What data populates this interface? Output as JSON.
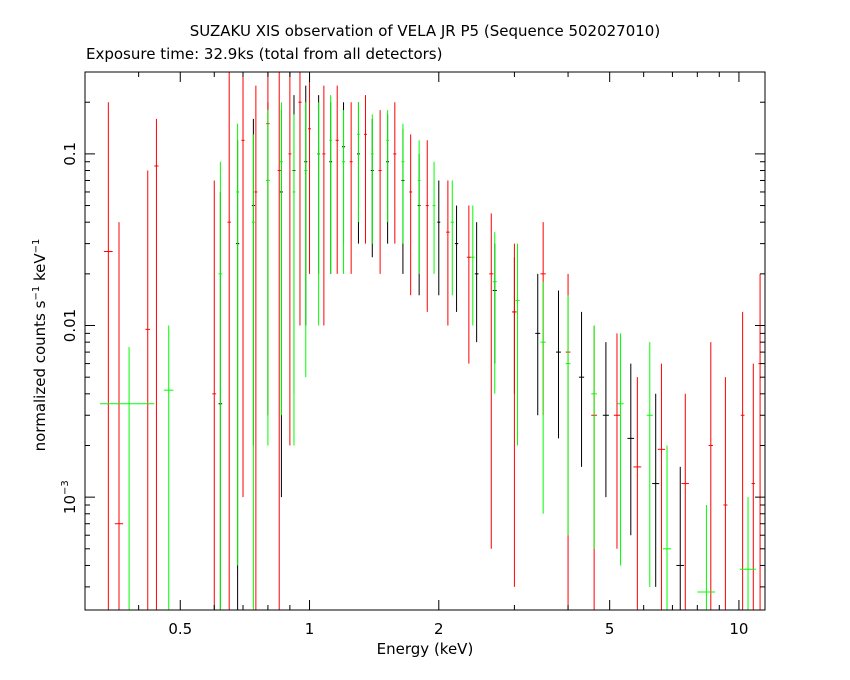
{
  "title": "SUZAKU XIS observation of VELA JR P5 (Sequence 502027010)",
  "subtitle": "Exposure time: 32.9ks (total from all detectors)",
  "xlabel": "Energy (keV)",
  "ylabel_parts": {
    "pre": "normalized counts s",
    "exp1": "−1",
    "mid": " keV",
    "exp2": "−1"
  },
  "chart_data": {
    "type": "scatter",
    "xscale": "log",
    "yscale": "log",
    "xlim": [
      0.3,
      11.5
    ],
    "ylim": [
      0.00022,
      0.3
    ],
    "xticks": [
      {
        "value": 0.5,
        "label": "0.5"
      },
      {
        "value": 1,
        "label": "1"
      },
      {
        "value": 2,
        "label": "2"
      },
      {
        "value": 5,
        "label": "5"
      },
      {
        "value": 10,
        "label": "10"
      }
    ],
    "yticks": [
      {
        "value": 0.001,
        "label": "10",
        "sup": "−3"
      },
      {
        "value": 0.01,
        "label": "0.01",
        "sup": ""
      },
      {
        "value": 0.1,
        "label": "0.1",
        "sup": ""
      }
    ],
    "series": [
      {
        "color": "#000000",
        "points": [
          {
            "x": 0.62,
            "y": 0.0035,
            "xerr": 0.006,
            "lo": 0.00022,
            "hi": 0.06
          },
          {
            "x": 0.68,
            "y": 0.03,
            "xerr": 0.006,
            "lo": 0.00022,
            "hi": 0.12
          },
          {
            "x": 0.74,
            "y": 0.05,
            "xerr": 0.006,
            "lo": 0.002,
            "hi": 0.16
          },
          {
            "x": 0.8,
            "y": 0.07,
            "xerr": 0.007,
            "lo": 0.003,
            "hi": 0.2
          },
          {
            "x": 0.86,
            "y": 0.06,
            "xerr": 0.007,
            "lo": 0.001,
            "hi": 0.18
          },
          {
            "x": 0.92,
            "y": 0.08,
            "xerr": 0.007,
            "lo": 0.004,
            "hi": 0.22
          },
          {
            "x": 0.98,
            "y": 0.09,
            "xerr": 0.008,
            "lo": 0.01,
            "hi": 0.25
          },
          {
            "x": 1.05,
            "y": 0.1,
            "xerr": 0.008,
            "lo": 0.02,
            "hi": 0.22
          },
          {
            "x": 1.12,
            "y": 0.09,
            "xerr": 0.009,
            "lo": 0.02,
            "hi": 0.2
          },
          {
            "x": 1.2,
            "y": 0.11,
            "xerr": 0.01,
            "lo": 0.03,
            "hi": 0.2
          },
          {
            "x": 1.3,
            "y": 0.1,
            "xerr": 0.01,
            "lo": 0.03,
            "hi": 0.2
          },
          {
            "x": 1.4,
            "y": 0.08,
            "xerr": 0.011,
            "lo": 0.025,
            "hi": 0.16
          },
          {
            "x": 1.52,
            "y": 0.09,
            "xerr": 0.012,
            "lo": 0.03,
            "hi": 0.17
          },
          {
            "x": 1.65,
            "y": 0.07,
            "xerr": 0.013,
            "lo": 0.02,
            "hi": 0.14
          },
          {
            "x": 1.8,
            "y": 0.05,
            "xerr": 0.014,
            "lo": 0.015,
            "hi": 0.1
          },
          {
            "x": 2.0,
            "y": 0.04,
            "xerr": 0.016,
            "lo": 0.015,
            "hi": 0.07
          },
          {
            "x": 2.2,
            "y": 0.03,
            "xerr": 0.02,
            "lo": 0.012,
            "hi": 0.05
          },
          {
            "x": 2.45,
            "y": 0.02,
            "xerr": 0.025,
            "lo": 0.008,
            "hi": 0.04
          },
          {
            "x": 2.7,
            "y": 0.016,
            "xerr": 0.03,
            "lo": 0.006,
            "hi": 0.03
          },
          {
            "x": 3.0,
            "y": 0.012,
            "xerr": 0.035,
            "lo": 0.004,
            "hi": 0.025
          },
          {
            "x": 3.4,
            "y": 0.009,
            "xerr": 0.045,
            "lo": 0.003,
            "hi": 0.02
          },
          {
            "x": 3.8,
            "y": 0.007,
            "xerr": 0.05,
            "lo": 0.0022,
            "hi": 0.016
          },
          {
            "x": 4.3,
            "y": 0.005,
            "xerr": 0.06,
            "lo": 0.0015,
            "hi": 0.012
          },
          {
            "x": 4.9,
            "y": 0.003,
            "xerr": 0.08,
            "lo": 0.001,
            "hi": 0.008
          },
          {
            "x": 5.6,
            "y": 0.0022,
            "xerr": 0.1,
            "lo": 0.0006,
            "hi": 0.006
          },
          {
            "x": 6.4,
            "y": 0.0012,
            "xerr": 0.12,
            "lo": 0.0003,
            "hi": 0.004
          },
          {
            "x": 7.3,
            "y": 0.0004,
            "xerr": 0.15,
            "lo": 0.00022,
            "hi": 0.0015
          }
        ]
      },
      {
        "color": "#ff0000",
        "points": [
          {
            "x": 0.34,
            "y": 0.027,
            "xerr": 0.008,
            "lo": 0.00022,
            "hi": 0.2
          },
          {
            "x": 0.36,
            "y": 0.0007,
            "xerr": 0.008,
            "lo": 0.00022,
            "hi": 0.04
          },
          {
            "x": 0.42,
            "y": 0.0095,
            "xerr": 0.005,
            "lo": 0.00022,
            "hi": 0.08
          },
          {
            "x": 0.44,
            "y": 0.085,
            "xerr": 0.005,
            "lo": 0.00022,
            "hi": 0.16
          },
          {
            "x": 0.6,
            "y": 0.004,
            "xerr": 0.006,
            "lo": 0.00022,
            "hi": 0.07
          },
          {
            "x": 0.65,
            "y": 0.04,
            "xerr": 0.006,
            "lo": 0.00022,
            "hi": 0.3
          },
          {
            "x": 0.7,
            "y": 0.12,
            "xerr": 0.006,
            "lo": 0.001,
            "hi": 0.3
          },
          {
            "x": 0.75,
            "y": 0.06,
            "xerr": 0.006,
            "lo": 0.00022,
            "hi": 0.25
          },
          {
            "x": 0.8,
            "y": 0.15,
            "xerr": 0.007,
            "lo": 0.003,
            "hi": 0.3
          },
          {
            "x": 0.85,
            "y": 0.08,
            "xerr": 0.007,
            "lo": 0.00022,
            "hi": 0.3
          },
          {
            "x": 0.9,
            "y": 0.1,
            "xerr": 0.007,
            "lo": 0.002,
            "hi": 0.3
          },
          {
            "x": 0.95,
            "y": 0.2,
            "xerr": 0.008,
            "lo": 0.01,
            "hi": 0.3
          },
          {
            "x": 1.0,
            "y": 0.14,
            "xerr": 0.008,
            "lo": 0.02,
            "hi": 0.3
          },
          {
            "x": 1.08,
            "y": 0.1,
            "xerr": 0.009,
            "lo": 0.01,
            "hi": 0.25
          },
          {
            "x": 1.16,
            "y": 0.12,
            "xerr": 0.01,
            "lo": 0.02,
            "hi": 0.25
          },
          {
            "x": 1.25,
            "y": 0.09,
            "xerr": 0.01,
            "lo": 0.02,
            "hi": 0.2
          },
          {
            "x": 1.35,
            "y": 0.13,
            "xerr": 0.011,
            "lo": 0.03,
            "hi": 0.22
          },
          {
            "x": 1.46,
            "y": 0.08,
            "xerr": 0.012,
            "lo": 0.02,
            "hi": 0.18
          },
          {
            "x": 1.58,
            "y": 0.1,
            "xerr": 0.013,
            "lo": 0.03,
            "hi": 0.2
          },
          {
            "x": 1.72,
            "y": 0.06,
            "xerr": 0.014,
            "lo": 0.015,
            "hi": 0.13
          },
          {
            "x": 1.88,
            "y": 0.05,
            "xerr": 0.015,
            "lo": 0.012,
            "hi": 0.12
          },
          {
            "x": 2.1,
            "y": 0.035,
            "xerr": 0.02,
            "lo": 0.01,
            "hi": 0.07
          },
          {
            "x": 2.35,
            "y": 0.025,
            "xerr": 0.025,
            "lo": 0.006,
            "hi": 0.05
          },
          {
            "x": 2.65,
            "y": 0.02,
            "xerr": 0.03,
            "lo": 0.0005,
            "hi": 0.045
          },
          {
            "x": 3.0,
            "y": 0.012,
            "xerr": 0.035,
            "lo": 0.0003,
            "hi": 0.03
          },
          {
            "x": 3.5,
            "y": 0.02,
            "xerr": 0.05,
            "lo": 0.003,
            "hi": 0.04
          },
          {
            "x": 4.0,
            "y": 0.007,
            "xerr": 0.05,
            "lo": 0.00022,
            "hi": 0.02
          },
          {
            "x": 4.6,
            "y": 0.003,
            "xerr": 0.07,
            "lo": 0.00022,
            "hi": 0.01
          },
          {
            "x": 5.2,
            "y": 0.003,
            "xerr": 0.09,
            "lo": 0.0005,
            "hi": 0.009
          },
          {
            "x": 5.8,
            "y": 0.0015,
            "xerr": 0.12,
            "lo": 0.00022,
            "hi": 0.005
          },
          {
            "x": 6.6,
            "y": 0.0019,
            "xerr": 0.13,
            "lo": 0.00022,
            "hi": 0.006
          },
          {
            "x": 7.5,
            "y": 0.0012,
            "xerr": 0.15,
            "lo": 0.00022,
            "hi": 0.004
          },
          {
            "x": 8.6,
            "y": 0.002,
            "xerr": 0.1,
            "lo": 0.00022,
            "hi": 0.008
          },
          {
            "x": 9.3,
            "y": 0.0009,
            "xerr": 0.1,
            "lo": 0.00022,
            "hi": 0.005
          },
          {
            "x": 10.2,
            "y": 0.003,
            "xerr": 0.1,
            "lo": 0.00022,
            "hi": 0.012
          },
          {
            "x": 10.8,
            "y": 0.0012,
            "xerr": 0.1,
            "lo": 0.00022,
            "hi": 0.006
          },
          {
            "x": 11.2,
            "y": 0.006,
            "xerr": 0.1,
            "lo": 0.00022,
            "hi": 0.02
          }
        ]
      },
      {
        "color": "#00ff00",
        "points": [
          {
            "x": 0.38,
            "y": 0.0035,
            "xerr": 0.055,
            "lo": 0.00022,
            "hi": 0.0075
          },
          {
            "x": 0.47,
            "y": 0.0042,
            "xerr": 0.012,
            "lo": 0.00022,
            "hi": 0.01
          },
          {
            "x": 0.62,
            "y": 0.02,
            "xerr": 0.006,
            "lo": 0.00022,
            "hi": 0.09
          },
          {
            "x": 0.68,
            "y": 0.06,
            "xerr": 0.006,
            "lo": 0.0004,
            "hi": 0.15
          },
          {
            "x": 0.74,
            "y": 0.04,
            "xerr": 0.006,
            "lo": 0.00022,
            "hi": 0.13
          },
          {
            "x": 0.8,
            "y": 0.07,
            "xerr": 0.007,
            "lo": 0.002,
            "hi": 0.18
          },
          {
            "x": 0.86,
            "y": 0.09,
            "xerr": 0.007,
            "lo": 0.003,
            "hi": 0.2
          },
          {
            "x": 0.92,
            "y": 0.06,
            "xerr": 0.007,
            "lo": 0.002,
            "hi": 0.17
          },
          {
            "x": 0.98,
            "y": 0.08,
            "xerr": 0.008,
            "lo": 0.005,
            "hi": 0.2
          },
          {
            "x": 1.05,
            "y": 0.1,
            "xerr": 0.008,
            "lo": 0.01,
            "hi": 0.2
          },
          {
            "x": 1.12,
            "y": 0.12,
            "xerr": 0.009,
            "lo": 0.02,
            "hi": 0.22
          },
          {
            "x": 1.2,
            "y": 0.09,
            "xerr": 0.01,
            "lo": 0.02,
            "hi": 0.18
          },
          {
            "x": 1.3,
            "y": 0.13,
            "xerr": 0.01,
            "lo": 0.04,
            "hi": 0.2
          },
          {
            "x": 1.4,
            "y": 0.1,
            "xerr": 0.011,
            "lo": 0.03,
            "hi": 0.17
          },
          {
            "x": 1.52,
            "y": 0.12,
            "xerr": 0.012,
            "lo": 0.04,
            "hi": 0.18
          },
          {
            "x": 1.65,
            "y": 0.09,
            "xerr": 0.013,
            "lo": 0.03,
            "hi": 0.15
          },
          {
            "x": 1.8,
            "y": 0.07,
            "xerr": 0.014,
            "lo": 0.02,
            "hi": 0.12
          },
          {
            "x": 1.95,
            "y": 0.05,
            "xerr": 0.015,
            "lo": 0.02,
            "hi": 0.09
          },
          {
            "x": 2.15,
            "y": 0.04,
            "xerr": 0.02,
            "lo": 0.015,
            "hi": 0.07
          },
          {
            "x": 2.4,
            "y": 0.025,
            "xerr": 0.025,
            "lo": 0.01,
            "hi": 0.05
          },
          {
            "x": 2.7,
            "y": 0.018,
            "xerr": 0.03,
            "lo": 0.004,
            "hi": 0.035
          },
          {
            "x": 3.05,
            "y": 0.014,
            "xerr": 0.035,
            "lo": 0.002,
            "hi": 0.03
          },
          {
            "x": 3.5,
            "y": 0.008,
            "xerr": 0.05,
            "lo": 0.0008,
            "hi": 0.018
          },
          {
            "x": 4.0,
            "y": 0.006,
            "xerr": 0.05,
            "lo": 0.0006,
            "hi": 0.015
          },
          {
            "x": 4.6,
            "y": 0.004,
            "xerr": 0.07,
            "lo": 0.0005,
            "hi": 0.01
          },
          {
            "x": 5.3,
            "y": 0.0035,
            "xerr": 0.09,
            "lo": 0.0004,
            "hi": 0.009
          },
          {
            "x": 6.2,
            "y": 0.003,
            "xerr": 0.1,
            "lo": 0.0003,
            "hi": 0.008
          },
          {
            "x": 6.8,
            "y": 0.0005,
            "xerr": 0.15,
            "lo": 0.00022,
            "hi": 0.002
          },
          {
            "x": 8.4,
            "y": 0.00028,
            "xerr": 0.4,
            "lo": 0.00022,
            "hi": 0.0009
          },
          {
            "x": 10.5,
            "y": 0.00038,
            "xerr": 0.45,
            "lo": 0.00022,
            "hi": 0.001
          }
        ]
      }
    ]
  }
}
